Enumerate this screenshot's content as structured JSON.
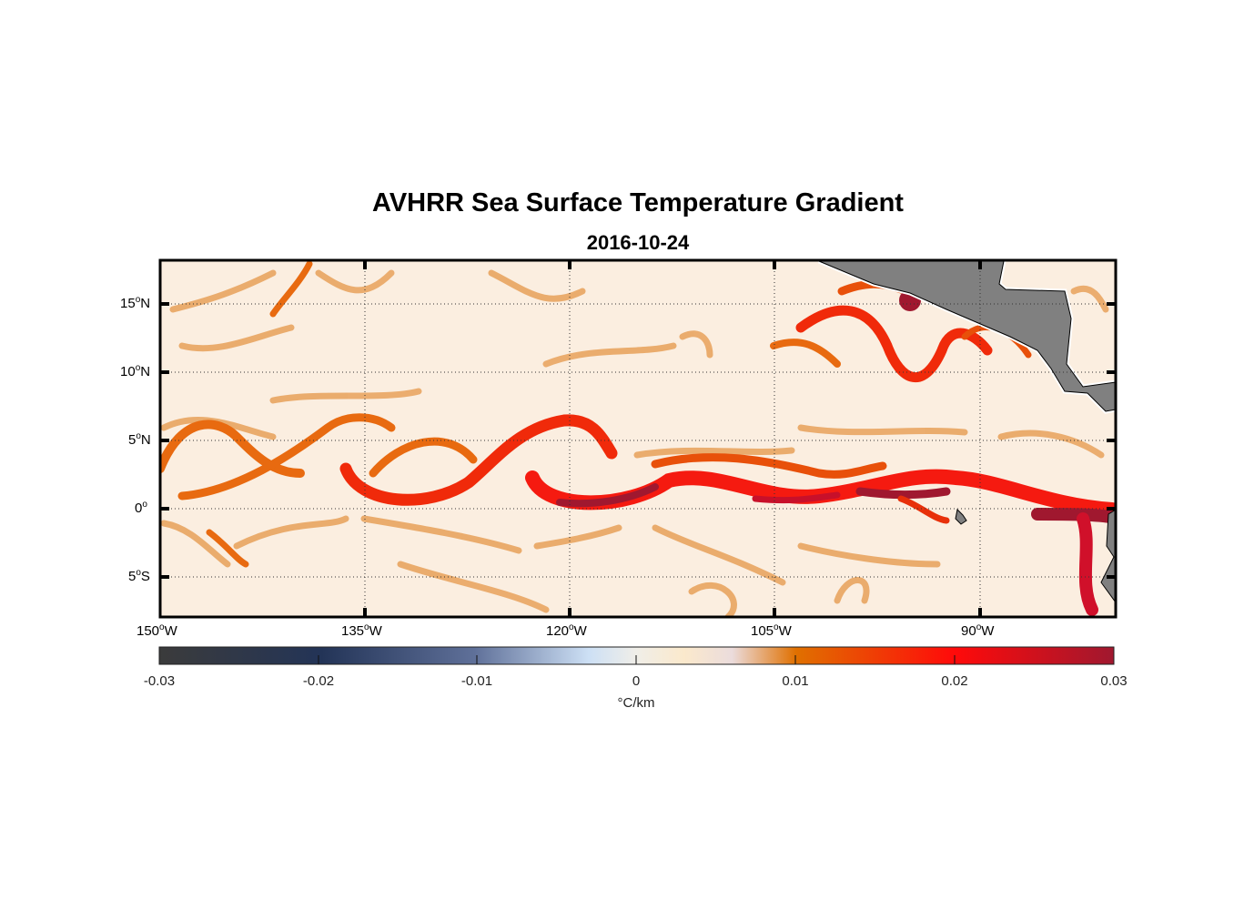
{
  "title": "AVHRR Sea Surface Temperature Gradient",
  "subtitle": "2016-10-24",
  "map": {
    "lon_range": [
      -150,
      -80
    ],
    "lat_range": [
      -8,
      18.2
    ],
    "y_ticks": [
      {
        "num": "15",
        "hem": "N"
      },
      {
        "num": "10",
        "hem": "N"
      },
      {
        "num": "5",
        "hem": "N"
      },
      {
        "num": "0",
        "hem": ""
      },
      {
        "num": "5",
        "hem": "S"
      }
    ],
    "x_ticks": [
      {
        "num": "150",
        "hem": "W"
      },
      {
        "num": "135",
        "hem": "W"
      },
      {
        "num": "120",
        "hem": "W"
      },
      {
        "num": "105",
        "hem": "W"
      },
      {
        "num": "90",
        "hem": "W"
      }
    ],
    "degree_symbol": "o",
    "land_color": "#808080",
    "ocean_base_color": "#fbeee0",
    "grid": "dotted"
  },
  "colorbar": {
    "ticks": [
      "-0.03",
      "-0.02",
      "-0.01",
      "0",
      "0.01",
      "0.02",
      "0.03"
    ],
    "range": [
      -0.03,
      0.03
    ],
    "label": "°C/km",
    "colors": [
      "#3b3b3b",
      "#233457",
      "#5f7099",
      "#cde0f5",
      "#f0eee8",
      "#fbe9cc",
      "#e88a1e",
      "#e07000",
      "#ff1010",
      "#a0182f"
    ]
  }
}
